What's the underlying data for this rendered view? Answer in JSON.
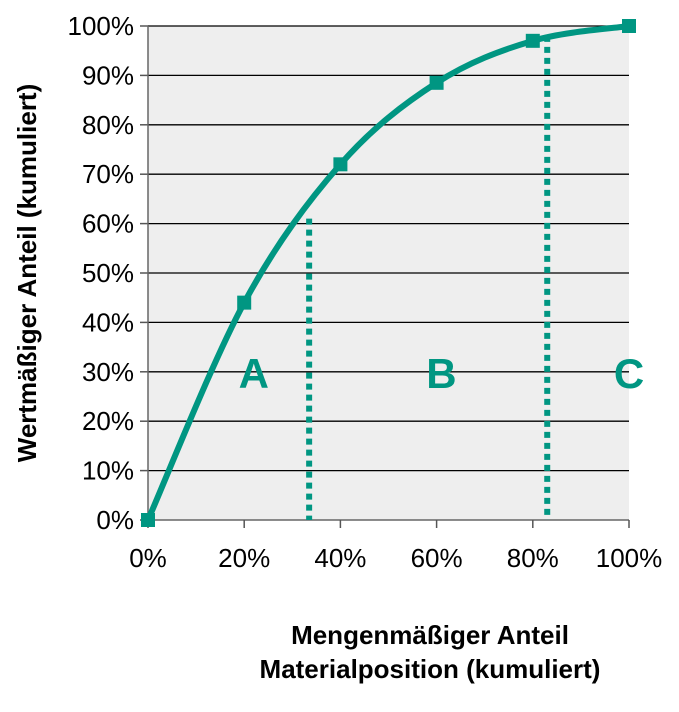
{
  "chart_data": {
    "type": "line",
    "title": "",
    "xlabel_lines": [
      "Mengenmäßiger Anteil",
      "Materialposition (kumuliert)"
    ],
    "ylabel": "Wertmäßiger Anteil (kumuliert)",
    "xlim": [
      0,
      100
    ],
    "ylim": [
      0,
      100
    ],
    "x_ticks": [
      "0%",
      "20%",
      "40%",
      "60%",
      "80%",
      "100%"
    ],
    "y_ticks": [
      "0%",
      "10%",
      "20%",
      "30%",
      "40%",
      "50%",
      "60%",
      "70%",
      "80%",
      "90%",
      "100%"
    ],
    "grid": "horizontal",
    "series": [
      {
        "x": [
          0,
          20,
          40,
          60,
          80,
          100
        ],
        "y": [
          0,
          44,
          72,
          88.5,
          97,
          100
        ],
        "color": "#009682"
      }
    ],
    "thresholds": [
      {
        "x": 33.5,
        "y_top": 61
      },
      {
        "x": 83,
        "y_top": 98
      }
    ],
    "zones": [
      {
        "label": "A",
        "x": 22
      },
      {
        "label": "B",
        "x": 61
      },
      {
        "label": "C",
        "x": 100
      }
    ],
    "zone_label_y": 30,
    "colors": {
      "line": "#009682",
      "plot_background": "#eeeeee",
      "gridline": "#000000",
      "zone_text": "#009682"
    }
  }
}
